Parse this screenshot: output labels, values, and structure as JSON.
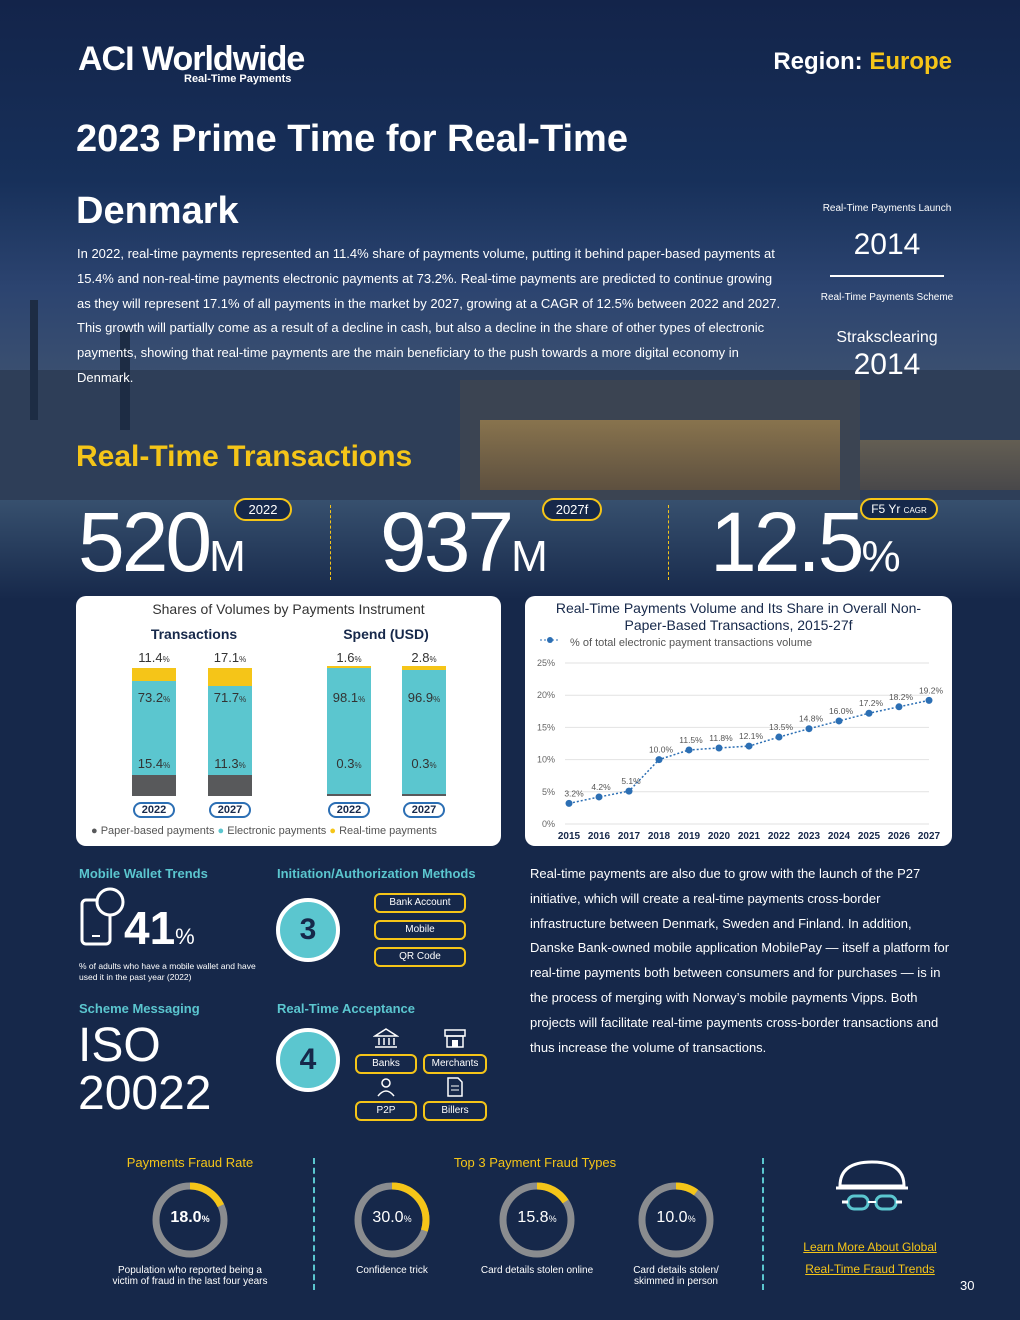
{
  "brand": {
    "name": "ACI Worldwide",
    "tagline": "Real-Time Payments"
  },
  "region": {
    "label": "Region:",
    "value": "Europe"
  },
  "title": "2023 Prime Time for Real-Time",
  "country": "Denmark",
  "intro": "In 2022, real-time payments represented an 11.4% share of payments volume, putting it behind paper-based payments at 15.4% and non-real-time payments electronic payments at 73.2%. Real-time payments are predicted to continue growing as they will represent 17.1% of all payments in the market by 2027, growing at a CAGR of 12.5% between 2022 and 2027. This growth will partially come as a result of a decline in cash, but also a decline in the share of other types of electronic payments, showing that real-time payments are the main beneficiary to the push towards a more digital economy in Denmark.",
  "sidebar": {
    "launch_label": "Real-Time Payments Launch",
    "launch_year": "2014",
    "scheme_label": "Real-Time Payments Scheme",
    "scheme_name": "Straksclearing",
    "scheme_year": "2014"
  },
  "rtt": {
    "heading": "Real-Time Transactions",
    "stats": [
      {
        "value": "520",
        "unit": "M",
        "tag": "2022"
      },
      {
        "value": "937",
        "unit": "M",
        "tag": "2027f"
      },
      {
        "value": "12.5",
        "unit": "%",
        "tag": "F5 Yr",
        "tag_small": "CAGR"
      }
    ]
  },
  "shares": {
    "title": "Shares of Volumes by Payments Instrument",
    "groups": [
      "Transactions",
      "Spend (USD)"
    ],
    "legend": [
      "Paper-based payments",
      "Electronic payments",
      "Real-time payments"
    ],
    "colors": {
      "paper": "#58595b",
      "electronic": "#5bc6cf",
      "realtime": "#f5c518"
    }
  },
  "line": {
    "title": "Real-Time Payments Volume and Its Share in Overall Non-Paper-Based Transactions, 2015-27f",
    "legend": "% of total electronic payment transactions volume"
  },
  "chart_data": [
    {
      "type": "bar",
      "stacked": true,
      "title": "Shares of Volumes by Payments Instrument",
      "groups": [
        {
          "name": "Transactions",
          "categories": [
            "2022",
            "2027"
          ],
          "series": [
            {
              "name": "Paper-based payments",
              "values": [
                15.4,
                11.3
              ],
              "labels": [
                "15.4",
                "11.3"
              ]
            },
            {
              "name": "Electronic payments",
              "values": [
                73.2,
                71.7
              ],
              "labels": [
                "73.2",
                "71.7"
              ]
            },
            {
              "name": "Real-time payments",
              "values": [
                11.4,
                17.1
              ],
              "labels": [
                "11.4",
                "17.1"
              ]
            }
          ]
        },
        {
          "name": "Spend (USD)",
          "categories": [
            "2022",
            "2027"
          ],
          "series": [
            {
              "name": "Paper-based payments",
              "values": [
                0.3,
                0.3
              ],
              "labels": [
                "0.3",
                "0.3"
              ]
            },
            {
              "name": "Electronic payments",
              "values": [
                98.1,
                96.9
              ],
              "labels": [
                "98.1",
                "96.9"
              ]
            },
            {
              "name": "Real-time payments",
              "values": [
                1.6,
                2.8
              ],
              "labels": [
                "1.6",
                "2.8"
              ]
            }
          ]
        }
      ],
      "legend": [
        "Paper-based payments",
        "Electronic payments",
        "Real-time payments"
      ]
    },
    {
      "type": "line",
      "title": "Real-Time Payments Volume and Its Share in Overall Non-Paper-Based Transactions, 2015-27f",
      "x": [
        "2015",
        "2016",
        "2017",
        "2018",
        "2019",
        "2020",
        "2021",
        "2022",
        "2023",
        "2024",
        "2025",
        "2026",
        "2027"
      ],
      "series": [
        {
          "name": "% of total electronic payment transactions volume",
          "values": [
            3.2,
            4.2,
            5.1,
            10.0,
            11.5,
            11.8,
            12.1,
            13.5,
            14.8,
            16.0,
            17.2,
            18.2,
            19.2
          ],
          "labels": [
            "3.2%",
            "4.2%",
            "5.1%",
            "10.0%",
            "11.5%",
            "11.8%",
            "12.1%",
            "13.5%",
            "14.8%",
            "16.0%",
            "17.2%",
            "18.2%",
            "19.2%"
          ]
        }
      ],
      "yticks": [
        "0%",
        "5%",
        "10%",
        "15%",
        "20%",
        "25%"
      ],
      "ylim": [
        0,
        25
      ]
    }
  ],
  "mobile": {
    "heading": "Mobile Wallet Trends",
    "value": "41",
    "unit": "%",
    "desc": "% of adults who have a mobile wallet and have used it in the past year (2022)"
  },
  "initiation": {
    "heading": "Initiation/Authorization Methods",
    "count": "3",
    "methods": [
      "Bank Account",
      "Mobile",
      "QR Code"
    ]
  },
  "scheme_msg": {
    "heading": "Scheme Messaging",
    "line1": "ISO",
    "line2": "20022"
  },
  "acceptance": {
    "heading": "Real-Time Acceptance",
    "count": "4",
    "items": [
      "Banks",
      "Merchants",
      "P2P",
      "Billers"
    ]
  },
  "para2": "Real-time payments are also due to grow with the launch of the P27 initiative, which will create a real-time payments cross-border infrastructure between Denmark, Sweden and Finland. In addition, Danske Bank-owned mobile application MobilePay — itself a platform for real-time payments both between consumers and for purchases — is in the process of merging with Norway’s mobile payments Vipps. Both projects will facilitate real-time payments cross-border transactions and thus increase the volume of transactions.",
  "fraud": {
    "rate_heading": "Payments Fraud Rate",
    "rate": {
      "value": "18.0",
      "unit": "%",
      "fraction": 0.18,
      "label": "Population who reported being a victim of fraud in the last four years"
    },
    "types_heading": "Top 3 Payment Fraud Types",
    "types": [
      {
        "value": "30.0",
        "unit": "%",
        "fraction": 0.3,
        "label": "Confidence trick"
      },
      {
        "value": "15.8",
        "unit": "%",
        "fraction": 0.158,
        "label": "Card details stolen online"
      },
      {
        "value": "10.0",
        "unit": "%",
        "fraction": 0.1,
        "label": "Card details stolen/ skimmed in person"
      }
    ],
    "link_line1": "Learn More About Global",
    "link_line2": "Real-Time Fraud Trends"
  },
  "page_number": "30"
}
